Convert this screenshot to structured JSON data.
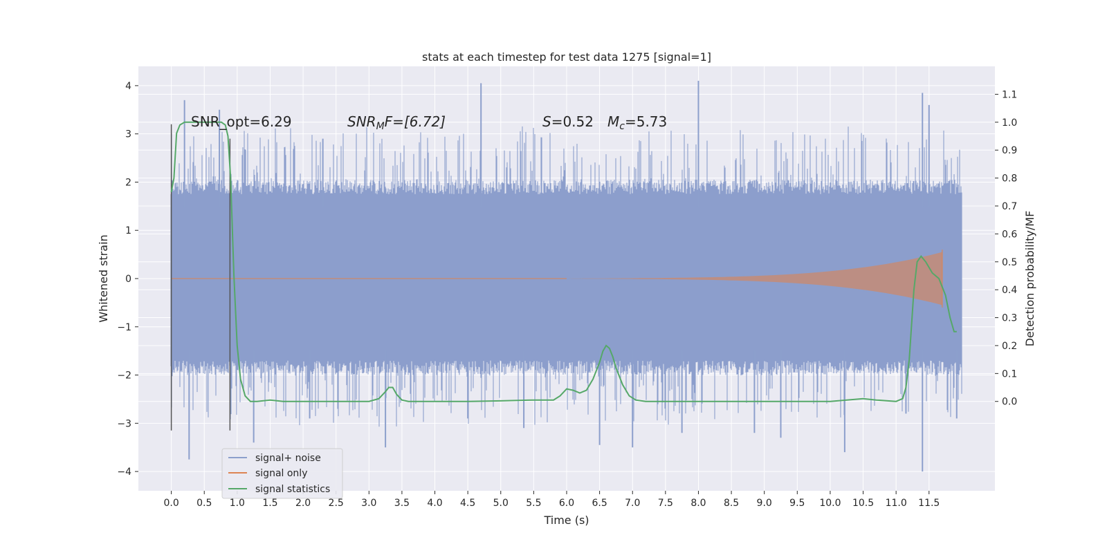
{
  "chart_data": {
    "type": "line",
    "title": "stats at each timestep for test data 1275 [signal=1]",
    "xlabel": "Time (s)",
    "ylabel": "Whitened strain",
    "ylabel_right": "Detection probability/MF",
    "xlim": [
      -0.5,
      12.5
    ],
    "ylim": [
      -4.4,
      4.4
    ],
    "ylim_right": [
      -0.32,
      1.2
    ],
    "x_ticks": [
      0.0,
      0.5,
      1.0,
      1.5,
      2.0,
      2.5,
      3.0,
      3.5,
      4.0,
      4.5,
      5.0,
      5.5,
      6.0,
      6.5,
      7.0,
      7.5,
      8.0,
      8.5,
      9.0,
      9.5,
      10.0,
      10.5,
      11.0,
      11.5
    ],
    "x_tick_labels": [
      "0.0",
      "0.5",
      "1.0",
      "1.5",
      "2.0",
      "2.5",
      "3.0",
      "3.5",
      "4.0",
      "4.5",
      "5.0",
      "5.5",
      "6.0",
      "6.5",
      "7.0",
      "7.5",
      "8.0",
      "8.5",
      "9.0",
      "9.5",
      "10.0",
      "10.5",
      "11.0",
      "11.5"
    ],
    "y_ticks": [
      -4,
      -3,
      -2,
      -1,
      0,
      1,
      2,
      3,
      4
    ],
    "y_tick_labels": [
      "−4",
      "−3",
      "−2",
      "−1",
      "0",
      "1",
      "2",
      "3",
      "4"
    ],
    "y_ticks_right": [
      0.0,
      0.1,
      0.2,
      0.3,
      0.4,
      0.5,
      0.6,
      0.7,
      0.8,
      0.9,
      1.0,
      1.1
    ],
    "y_tick_labels_right": [
      "0.0",
      "0.1",
      "0.2",
      "0.3",
      "0.4",
      "0.5",
      "0.6",
      "0.7",
      "0.8",
      "0.9",
      "1.0",
      "1.1"
    ],
    "grid": true,
    "legend_position": "lower-left",
    "annotations": {
      "snr_opt": "SNR_opt=6.29",
      "snr_mf_sym": "SNR",
      "snr_mf_sub": "M",
      "snr_mf_rest": "F=[6.72]",
      "s_sym": "S",
      "s_rest": "=0.52",
      "mc_sym": "M",
      "mc_sub": "c",
      "mc_rest": "=5.73"
    },
    "vertical_markers": [
      {
        "x": 0.0,
        "y_range": [
          -3.15,
          3.2
        ]
      },
      {
        "x": 0.89,
        "y_range": [
          -3.15,
          2.9
        ]
      }
    ],
    "series": [
      {
        "name": "signal+ noise",
        "color": "#8c9fcc",
        "noise_band": {
          "x_start": 0.0,
          "x_end": 12.0,
          "core": [
            -1.25,
            1.3
          ],
          "typical": [
            -2.0,
            2.0
          ],
          "spike_peaks": [
            [
              0.2,
              3.7
            ],
            [
              0.73,
              3.5
            ],
            [
              1.25,
              -3.4
            ],
            [
              2.3,
              2.9
            ],
            [
              3.25,
              -3.5
            ],
            [
              4.7,
              4.05
            ],
            [
              5.35,
              -3.1
            ],
            [
              6.5,
              -3.45
            ],
            [
              7.0,
              -3.5
            ],
            [
              7.75,
              -3.2
            ],
            [
              8.0,
              4.1
            ],
            [
              8.85,
              -3.2
            ],
            [
              9.25,
              -3.3
            ],
            [
              10.22,
              -3.6
            ],
            [
              11.4,
              3.85
            ],
            [
              11.4,
              -4.0
            ],
            [
              11.5,
              3.6
            ],
            [
              11.92,
              -2.9
            ],
            [
              11.15,
              -2.8
            ],
            [
              4.5,
              -2.9
            ],
            [
              2.1,
              -2.9
            ],
            [
              0.27,
              -3.75
            ]
          ]
        }
      },
      {
        "name": "signal only",
        "color": "#dd8452",
        "chirp": {
          "start_x": 6.0,
          "end_x": 11.7,
          "amplitude_start": 0.0,
          "amplitude_end": 0.55
        }
      },
      {
        "name": "signal statistics",
        "color": "#55a868",
        "axis": "right",
        "x": [
          0.0,
          0.04,
          0.08,
          0.13,
          0.2,
          0.3,
          0.4,
          0.5,
          0.6,
          0.7,
          0.76,
          0.82,
          0.86,
          0.9,
          0.95,
          1.0,
          1.05,
          1.12,
          1.2,
          1.3,
          1.5,
          1.7,
          2.0,
          2.5,
          3.0,
          3.15,
          3.25,
          3.3,
          3.36,
          3.42,
          3.5,
          3.6,
          4.0,
          4.5,
          5.0,
          5.5,
          5.8,
          5.9,
          6.0,
          6.1,
          6.2,
          6.3,
          6.4,
          6.5,
          6.55,
          6.6,
          6.65,
          6.7,
          6.75,
          6.85,
          6.95,
          7.05,
          7.2,
          7.5,
          8.0,
          8.5,
          9.0,
          9.5,
          10.0,
          10.5,
          10.7,
          11.0,
          11.1,
          11.15,
          11.2,
          11.27,
          11.32,
          11.38,
          11.45,
          11.55,
          11.65,
          11.75,
          11.82,
          11.88,
          11.92
        ],
        "y": [
          0.75,
          0.8,
          0.96,
          0.99,
          1.0,
          1.0,
          1.0,
          1.0,
          1.0,
          1.0,
          1.0,
          0.99,
          0.95,
          0.8,
          0.45,
          0.2,
          0.08,
          0.02,
          0.0,
          0.0,
          0.005,
          0.0,
          0.0,
          0.0,
          0.0,
          0.01,
          0.035,
          0.05,
          0.05,
          0.025,
          0.005,
          0.0,
          0.0,
          0.0,
          0.002,
          0.005,
          0.005,
          0.02,
          0.045,
          0.04,
          0.03,
          0.04,
          0.08,
          0.14,
          0.18,
          0.2,
          0.19,
          0.16,
          0.12,
          0.06,
          0.02,
          0.005,
          0.0,
          0.0,
          0.0,
          0.0,
          0.0,
          0.0,
          0.0,
          0.01,
          0.005,
          0.0,
          0.01,
          0.05,
          0.15,
          0.4,
          0.5,
          0.52,
          0.5,
          0.46,
          0.44,
          0.38,
          0.3,
          0.25,
          0.25
        ]
      }
    ]
  }
}
